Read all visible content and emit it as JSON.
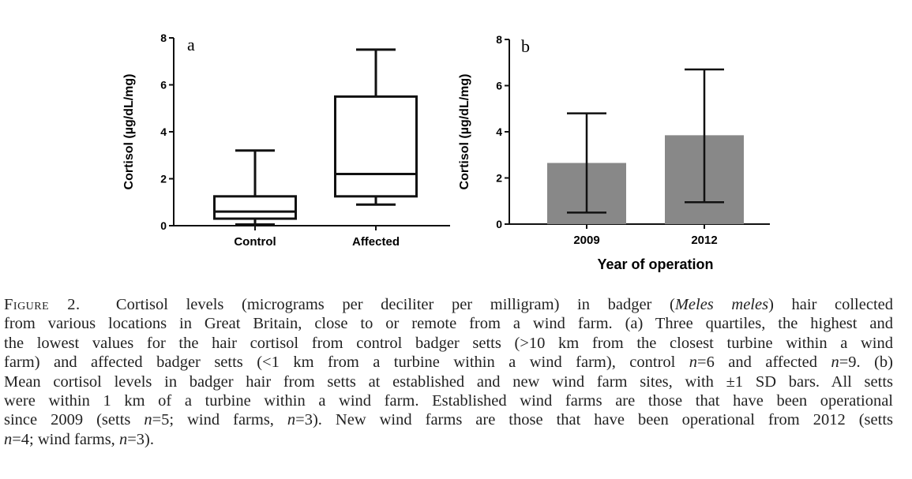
{
  "chart_data": [
    {
      "type": "boxplot",
      "panel_label": "a",
      "ylabel": "Cortisol (µg/dL/mg)",
      "xlabel": "",
      "ylim": [
        0,
        8
      ],
      "yticks": [
        "0",
        "2",
        "4",
        "6",
        "8"
      ],
      "categories": [
        "Control",
        "Affected"
      ],
      "boxes": [
        {
          "category": "Control",
          "min": 0.05,
          "q1": 0.3,
          "median": 0.6,
          "q3": 1.25,
          "max": 3.2
        },
        {
          "category": "Affected",
          "min": 0.9,
          "q1": 1.25,
          "median": 2.2,
          "q3": 5.5,
          "max": 7.5
        }
      ],
      "grid": false
    },
    {
      "type": "bar",
      "panel_label": "b",
      "ylabel": "Cortisol (µg/dL/mg)",
      "xlabel": "Year of operation",
      "ylim": [
        0,
        8
      ],
      "yticks": [
        "0",
        "2",
        "4",
        "6",
        "8"
      ],
      "categories": [
        "2009",
        "2012"
      ],
      "values": [
        2.65,
        3.85
      ],
      "error_low": [
        0.5,
        0.95
      ],
      "error_high": [
        4.8,
        6.7
      ],
      "bar_color": "#888888",
      "grid": false
    }
  ],
  "caption": {
    "lines": [
      [
        {
          "t": "Figure 2.",
          "s": "sc"
        },
        {
          "t": "  Cortisol levels (micrograms per deciliter per milligram) in badger ("
        },
        {
          "t": "Meles meles",
          "s": "it"
        },
        {
          "t": ") hair collected"
        }
      ],
      [
        {
          "t": "from various locations in Great Britain, close to or remote from a wind farm. (a) Three quartiles, the highest and"
        }
      ],
      [
        {
          "t": "the lowest values for the hair cortisol from control badger setts (>10 km from the closest turbine within a wind"
        }
      ],
      [
        {
          "t": "farm) and affected badger setts (<1 km from a turbine within a wind farm), control "
        },
        {
          "t": "n",
          "s": "it"
        },
        {
          "t": "=6 and affected "
        },
        {
          "t": "n",
          "s": "it"
        },
        {
          "t": "=9. (b)"
        }
      ],
      [
        {
          "t": "Mean cortisol levels in badger hair from setts at established and new wind farm sites, with ±1 SD bars. All setts"
        }
      ],
      [
        {
          "t": "were within 1 km of a turbine within a wind farm. Established wind farms are those that have been operational"
        }
      ],
      [
        {
          "t": "since 2009 (setts "
        },
        {
          "t": "n",
          "s": "it"
        },
        {
          "t": "=5; wind farms, "
        },
        {
          "t": "n",
          "s": "it"
        },
        {
          "t": "=3). New wind farms are those that have been operational from 2012 (setts"
        }
      ],
      [
        {
          "t": "n",
          "s": "it"
        },
        {
          "t": "=4; wind farms, "
        },
        {
          "t": "n",
          "s": "it"
        },
        {
          "t": "=3)."
        }
      ]
    ]
  }
}
